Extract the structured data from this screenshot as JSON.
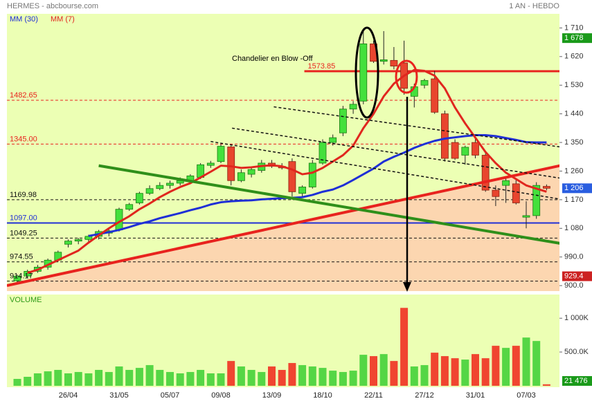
{
  "chart_data": {
    "type": "candlestick",
    "title": "HERMES - abcbourse.com",
    "period": "1 AN - HEBDO",
    "annotation": "Chandelier en Blow -Off",
    "categories": [
      null,
      null,
      null,
      null,
      null,
      "26/04",
      null,
      null,
      null,
      null,
      "31/05",
      null,
      null,
      null,
      null,
      "05/07",
      null,
      null,
      null,
      null,
      "09/08",
      null,
      null,
      null,
      null,
      "13/09",
      null,
      null,
      null,
      null,
      "18/10",
      null,
      null,
      null,
      null,
      "22/11",
      null,
      null,
      null,
      null,
      "27/12",
      null,
      null,
      null,
      null,
      "31/01",
      null,
      null,
      null,
      null,
      "07/03",
      null,
      null
    ],
    "open": [
      915,
      930,
      945,
      958,
      980,
      1030,
      1040,
      1045,
      1055,
      1065,
      1075,
      1140,
      1160,
      1190,
      1205,
      1215,
      1222,
      1230,
      1240,
      1278,
      1290,
      1336,
      1230,
      1250,
      1262,
      1285,
      1275,
      1290,
      1190,
      1210,
      1285,
      1350,
      1380,
      1455,
      1480,
      1660,
      1605,
      1608,
      1600,
      1495,
      1530,
      1550,
      1440,
      1350,
      1310,
      1350,
      1310,
      1200,
      1215,
      1220,
      1115,
      1120,
      1212
    ],
    "high": [
      935,
      950,
      965,
      985,
      1010,
      1045,
      1050,
      1060,
      1075,
      1078,
      1145,
      1160,
      1195,
      1215,
      1225,
      1230,
      1240,
      1250,
      1285,
      1292,
      1345,
      1340,
      1265,
      1270,
      1295,
      1295,
      1285,
      1300,
      1215,
      1295,
      1360,
      1375,
      1465,
      1480,
      1700,
      1670,
      1700,
      1650,
      1670,
      1535,
      1550,
      1575,
      1450,
      1360,
      1340,
      1360,
      1320,
      1215,
      1240,
      1235,
      1165,
      1225,
      1218
    ],
    "low": [
      905,
      925,
      940,
      950,
      975,
      1020,
      1030,
      1035,
      1045,
      1055,
      1070,
      1135,
      1155,
      1185,
      1200,
      1205,
      1215,
      1225,
      1235,
      1270,
      1285,
      1215,
      1225,
      1240,
      1255,
      1270,
      1265,
      1180,
      1180,
      1205,
      1280,
      1340,
      1370,
      1440,
      1470,
      1600,
      1595,
      1580,
      1500,
      1460,
      1520,
      1440,
      1290,
      1295,
      1280,
      1300,
      1195,
      1150,
      1160,
      1155,
      1080,
      1110,
      1200
    ],
    "close": [
      930,
      945,
      958,
      980,
      1005,
      1040,
      1045,
      1055,
      1070,
      1072,
      1140,
      1155,
      1190,
      1205,
      1215,
      1222,
      1230,
      1245,
      1280,
      1285,
      1338,
      1230,
      1255,
      1265,
      1285,
      1275,
      1270,
      1195,
      1210,
      1285,
      1350,
      1365,
      1455,
      1470,
      1660,
      1605,
      1610,
      1590,
      1520,
      1525,
      1545,
      1445,
      1300,
      1300,
      1335,
      1310,
      1200,
      1180,
      1230,
      1160,
      1120,
      1215,
      1206
    ],
    "up_color": "#44e03c",
    "down_color": "#e8452e",
    "ylim": [
      885,
      1750
    ],
    "yticks": [
      {
        "value": 900,
        "label": "900.0"
      },
      {
        "value": 990,
        "label": "990.0"
      },
      {
        "value": 1080,
        "label": "1 080"
      },
      {
        "value": 1170,
        "label": "1 170"
      },
      {
        "value": 1260,
        "label": "1 260"
      },
      {
        "value": 1350,
        "label": "1 350"
      },
      {
        "value": 1440,
        "label": "1 440"
      },
      {
        "value": 1530,
        "label": "1 530"
      },
      {
        "value": 1620,
        "label": "1 620"
      },
      {
        "value": 1710,
        "label": "1 710"
      }
    ],
    "series": [
      {
        "name": "MM (30)",
        "color": "#1f2fd6",
        "values": [
          null,
          null,
          null,
          null,
          null,
          null,
          null,
          1056,
          1062,
          1068,
          1075,
          1084,
          1094,
          1102,
          1112,
          1120,
          1128,
          1137,
          1145,
          1155,
          1162,
          1165,
          1167,
          1168,
          1171,
          1173,
          1175,
          1176,
          1178,
          1185,
          1195,
          1202,
          1215,
          1232,
          1250,
          1268,
          1290,
          1305,
          1318,
          1333,
          1345,
          1355,
          1362,
          1366,
          1370,
          1373,
          1373,
          1370,
          1364,
          1358,
          1351,
          1350,
          1350
        ]
      },
      {
        "name": "MM (7)",
        "color": "#e0261e",
        "values": [
          null,
          940,
          950,
          965,
          980,
          995,
          1010,
          1035,
          1058,
          1080,
          1100,
          1118,
          1140,
          1158,
          1178,
          1195,
          1210,
          1222,
          1240,
          1258,
          1277,
          1275,
          1270,
          1272,
          1276,
          1278,
          1275,
          1265,
          1250,
          1255,
          1270,
          1290,
          1310,
          1340,
          1395,
          1440,
          1495,
          1535,
          1560,
          1578,
          1575,
          1560,
          1520,
          1460,
          1410,
          1365,
          1320,
          1285,
          1255,
          1235,
          1215,
          1205,
          1195
        ]
      }
    ],
    "levels": [
      {
        "value": 1573.85,
        "label": "1573.85",
        "color": "#e8231e",
        "style": "solid",
        "start_index": 28.2
      },
      {
        "value": 1482.65,
        "label": "1482.65",
        "color": "#e8231e",
        "style": "dash"
      },
      {
        "value": 1345,
        "label": "1345.00",
        "color": "#e8231e",
        "style": "dash"
      },
      {
        "value": 1169.98,
        "label": "1169.98",
        "color": "#111111",
        "style": "dash"
      },
      {
        "value": 1097,
        "label": "1097.00",
        "color": "#1f2fd6",
        "style": "solid"
      },
      {
        "value": 1049.25,
        "label": "1049.25",
        "color": "#111111",
        "style": "dash"
      },
      {
        "value": 974.55,
        "label": "974.55",
        "color": "#111111",
        "style": "dash"
      },
      {
        "value": 914.17,
        "label": "914.17",
        "color": "#111111",
        "style": "dash"
      }
    ],
    "trendlines": [
      {
        "from": [
          -1.02,
          900
        ],
        "to": [
          53.3,
          1277
        ],
        "color": "#e8231e",
        "width": 4,
        "fill_below": "#fcd6b0"
      },
      {
        "from": [
          8,
          1277
        ],
        "to": [
          53.3,
          1033
        ],
        "color": "#2f8f1a",
        "width": 4
      },
      {
        "from": [
          25.2,
          1462
        ],
        "to": [
          53.3,
          1336
        ],
        "color": "#111111",
        "width": 1.5,
        "dash": true
      },
      {
        "from": [
          21.1,
          1395
        ],
        "to": [
          53.3,
          1238
        ],
        "color": "#111111",
        "width": 1.5,
        "dash": true
      },
      {
        "from": [
          19,
          1353
        ],
        "to": [
          53.3,
          1172
        ],
        "color": "#111111",
        "width": 1.5,
        "dash": true
      }
    ],
    "markers": [
      {
        "value": 1678,
        "label": "1 678",
        "color": "#1a9a1a"
      },
      {
        "value": 1206,
        "label": "1 206",
        "color": "#2a5ee0"
      },
      {
        "value": 929.4,
        "label": "929.4",
        "color": "#cc2222"
      }
    ],
    "volume": {
      "title": "VOLUME",
      "values": [
        102000,
        133000,
        184000,
        214000,
        235000,
        184000,
        204000,
        184000,
        235000,
        204000,
        286000,
        235000,
        265000,
        306000,
        235000,
        204000,
        184000,
        204000,
        235000,
        184000,
        184000,
        367000,
        286000,
        235000,
        204000,
        286000,
        235000,
        337000,
        306000,
        286000,
        265000,
        224000,
        204000,
        224000,
        459000,
        439000,
        469000,
        367000,
        1153000,
        286000,
        306000,
        490000,
        439000,
        408000,
        388000,
        469000,
        408000,
        592000,
        561000,
        592000,
        714000,
        663000,
        21476
      ],
      "ylim": [
        0,
        1330000
      ],
      "yticks": [
        {
          "value": 500000,
          "label": "500.0K"
        },
        {
          "value": 1000000,
          "label": "1 000K"
        }
      ],
      "marker": {
        "value": 21476,
        "label": "21 476",
        "color": "#1a9a1a"
      }
    }
  }
}
